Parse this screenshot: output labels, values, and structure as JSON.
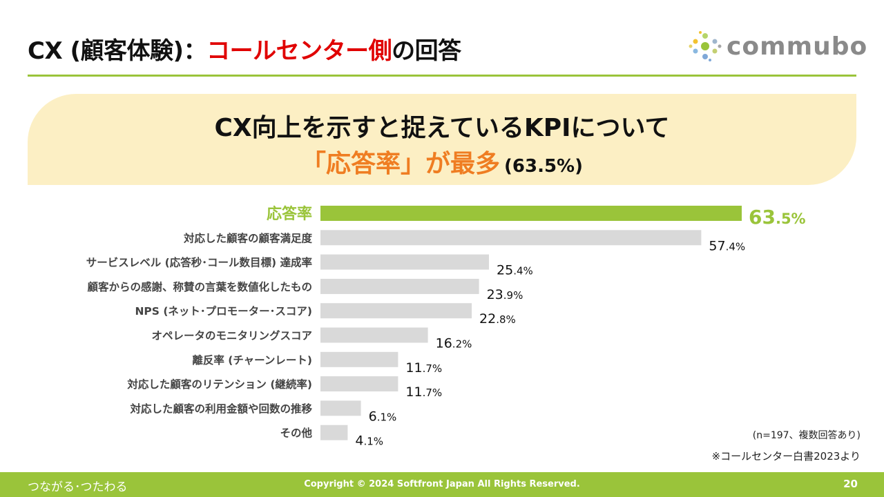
{
  "header": {
    "title_prefix": "CX (顧客体験)：",
    "title_highlight": "コールセンター側",
    "title_suffix": "の回答",
    "logo_text": "commubo"
  },
  "banner": {
    "line1": "CX向上を示すと捉えているKPIについて",
    "line2_highlight": "「応答率」が最多",
    "line2_value": "(63.5%)"
  },
  "chart_data": {
    "type": "bar",
    "orientation": "horizontal",
    "title": "",
    "categories": [
      "応答率",
      "対応した顧客の顧客満足度",
      "サービスレベル (応答秒･コール数目標) 達成率",
      "顧客からの感謝、称賛の言葉を数値化したもの",
      "NPS (ネット･プロモーター･スコア)",
      "オペレータのモニタリングスコア",
      "離反率 (チャーンレート)",
      "対応した顧客のリテンション (継続率)",
      "対応した顧客の利用金額や回数の推移",
      "その他"
    ],
    "values": [
      63.5,
      57.4,
      25.4,
      23.9,
      22.8,
      16.2,
      11.7,
      11.7,
      6.1,
      4.1
    ],
    "unit": "%",
    "xlim": [
      0,
      63.5
    ],
    "highlight_index": 0,
    "colors": {
      "highlight": "#9ac43a",
      "default": "#d9d9d9"
    },
    "legend": "none",
    "grid": false
  },
  "notes": {
    "sample": "(n=197、複数回答あり)",
    "source": "※コールセンター白書2023より"
  },
  "footer": {
    "tagline": "つながる･つたわる",
    "copyright": "Copyright © 2024 Softfront Japan All Rights Reserved.",
    "page_number": "20"
  }
}
